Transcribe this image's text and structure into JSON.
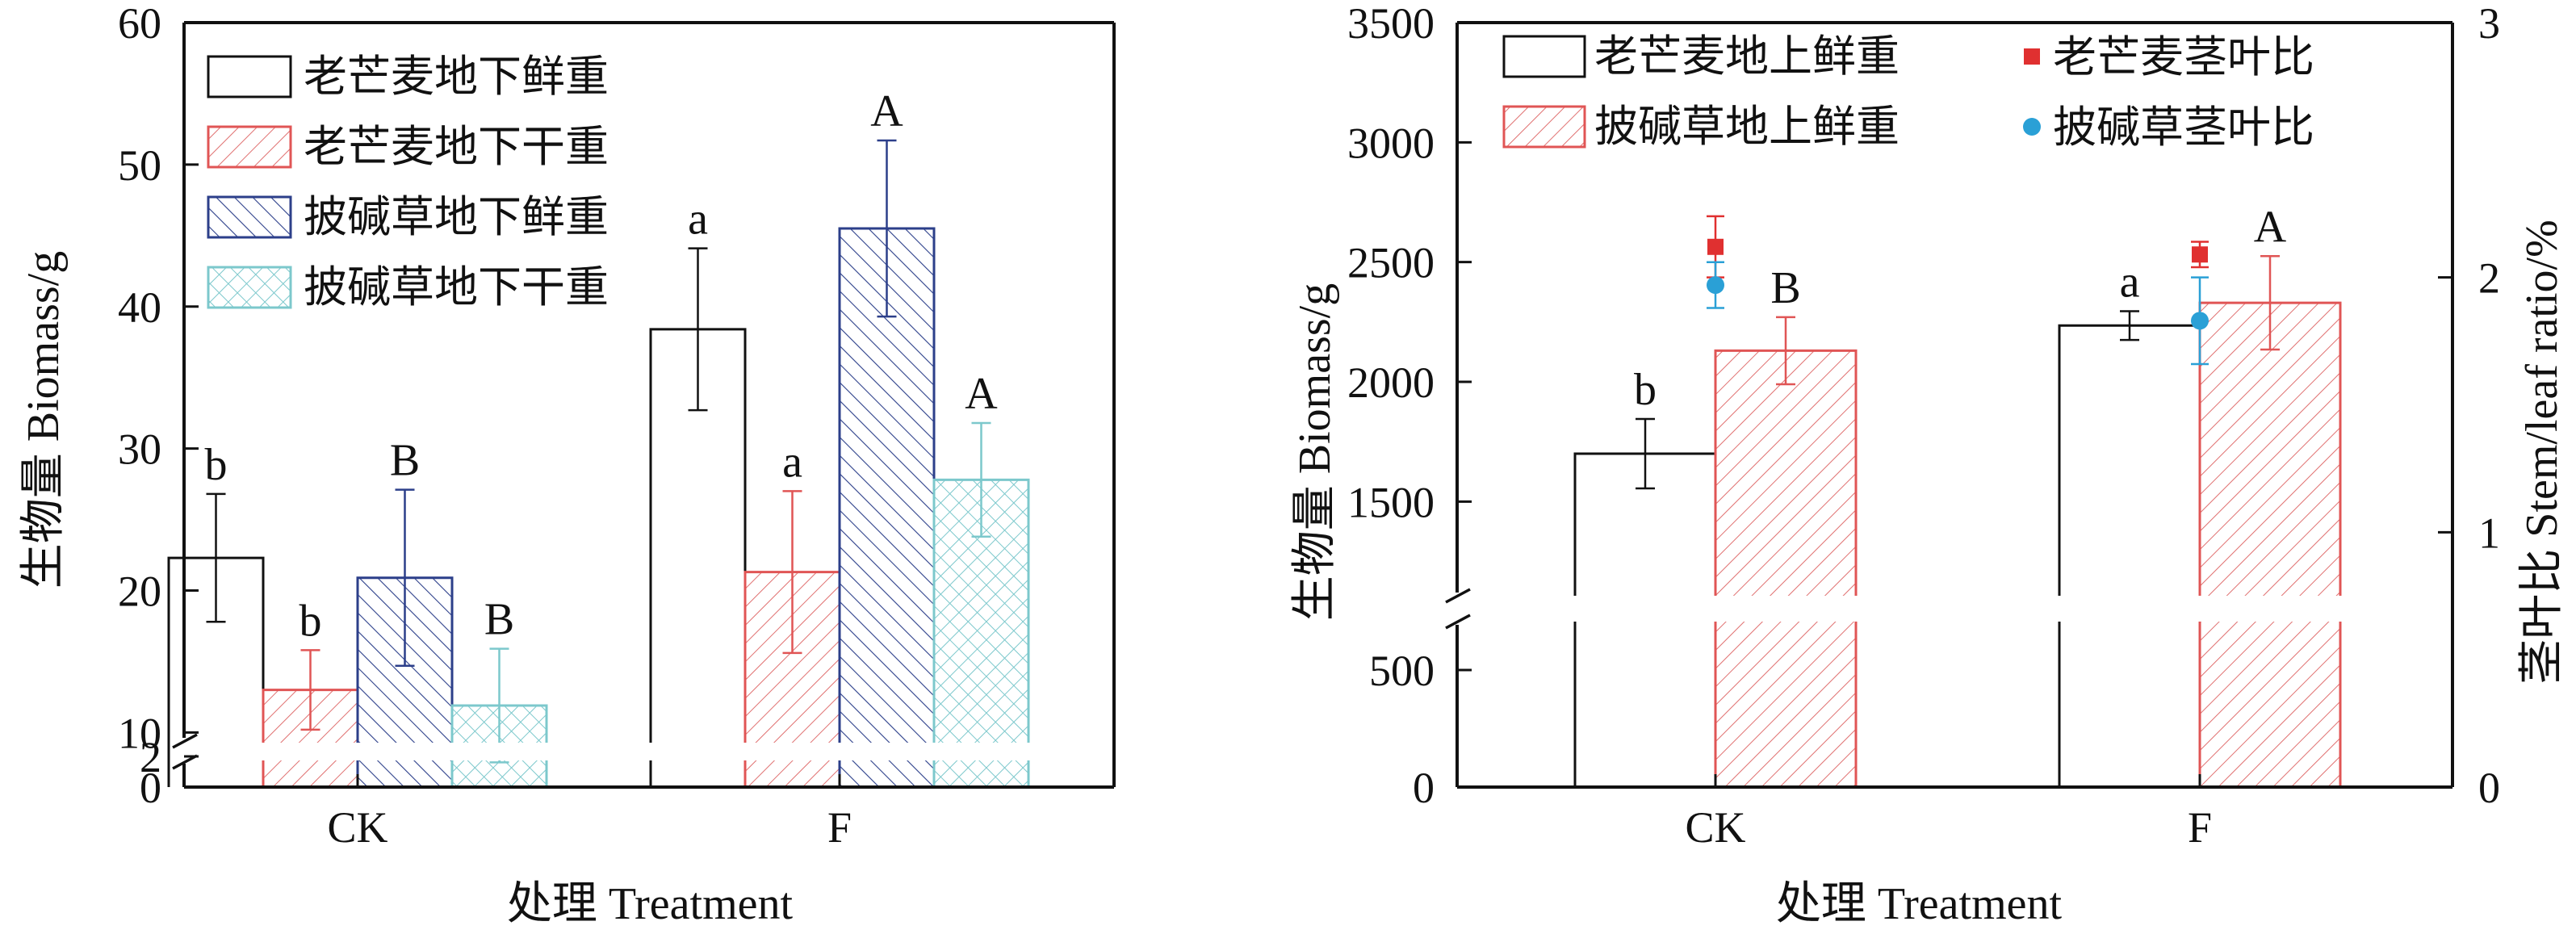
{
  "chart_data": [
    {
      "type": "bar",
      "panel": "left",
      "categories": [
        "CK",
        "F"
      ],
      "xlabel": "处理 Treatment",
      "ylabel": "生物量 Biomass/g",
      "y_axis": {
        "broken": true,
        "lower_ticks": [
          0,
          2
        ],
        "upper_ticks": [
          10,
          20,
          30,
          40,
          50,
          60
        ],
        "upper_range": [
          9,
          60
        ]
      },
      "legend_position": "top-left",
      "series": [
        {
          "name": "老芒麦地下鲜重",
          "values": [
            22.3,
            38.4
          ],
          "errors": [
            4.5,
            5.7
          ],
          "letters": [
            "b",
            "a"
          ],
          "style": "open",
          "color": "#111111"
        },
        {
          "name": "老芒麦地下干重",
          "values": [
            13.0,
            21.3
          ],
          "errors": [
            2.8,
            5.7
          ],
          "letters": [
            "b",
            "a"
          ],
          "style": "hatch-forward",
          "color": "#e05555"
        },
        {
          "name": "披碱草地下鲜重",
          "values": [
            20.9,
            45.5
          ],
          "errors": [
            6.2,
            6.2
          ],
          "letters": [
            "B",
            "A"
          ],
          "style": "hatch-back",
          "color": "#2c3f8a"
        },
        {
          "name": "披碱草地下干重",
          "values": [
            11.9,
            27.8
          ],
          "errors": [
            4.0,
            4.0
          ],
          "letters": [
            "B",
            "A"
          ],
          "style": "crosshatch",
          "color": "#7cc8cc"
        }
      ]
    },
    {
      "type": "bar",
      "panel": "right",
      "categories": [
        "CK",
        "F"
      ],
      "xlabel": "处理 Treatment",
      "ylabel": "生物量 Biomass/g",
      "y2label": "茎叶比 Stem/leaf ratio/%",
      "y_axis": {
        "broken": true,
        "lower_ticks": [
          0,
          500
        ],
        "upper_ticks": [
          1500,
          2000,
          2500,
          3000,
          3500
        ],
        "upper_range": [
          1100,
          3500
        ]
      },
      "y2_axis": {
        "ticks": [
          0,
          1,
          2,
          3
        ],
        "range": [
          0,
          3
        ]
      },
      "legend_position": "top",
      "series": [
        {
          "name": "老芒麦地上鲜重",
          "values": [
            1700,
            2235
          ],
          "errors": [
            145,
            60
          ],
          "letters": [
            "b",
            "a"
          ],
          "style": "open",
          "color": "#111111"
        },
        {
          "name": "披碱草地上鲜重",
          "values": [
            2130,
            2330
          ],
          "errors": [
            140,
            195
          ],
          "letters": [
            "B",
            "A"
          ],
          "style": "hatch-forward",
          "color": "#e05555"
        }
      ],
      "points": [
        {
          "name": "老芒麦茎叶比",
          "marker": "square",
          "color": "#e03030",
          "values": [
            2.12,
            2.09
          ],
          "errors": [
            0.12,
            0.05
          ]
        },
        {
          "name": "披碱草茎叶比",
          "marker": "circle",
          "color": "#2aa0d6",
          "values": [
            1.97,
            1.83
          ],
          "errors": [
            0.09,
            0.17
          ]
        }
      ]
    }
  ]
}
